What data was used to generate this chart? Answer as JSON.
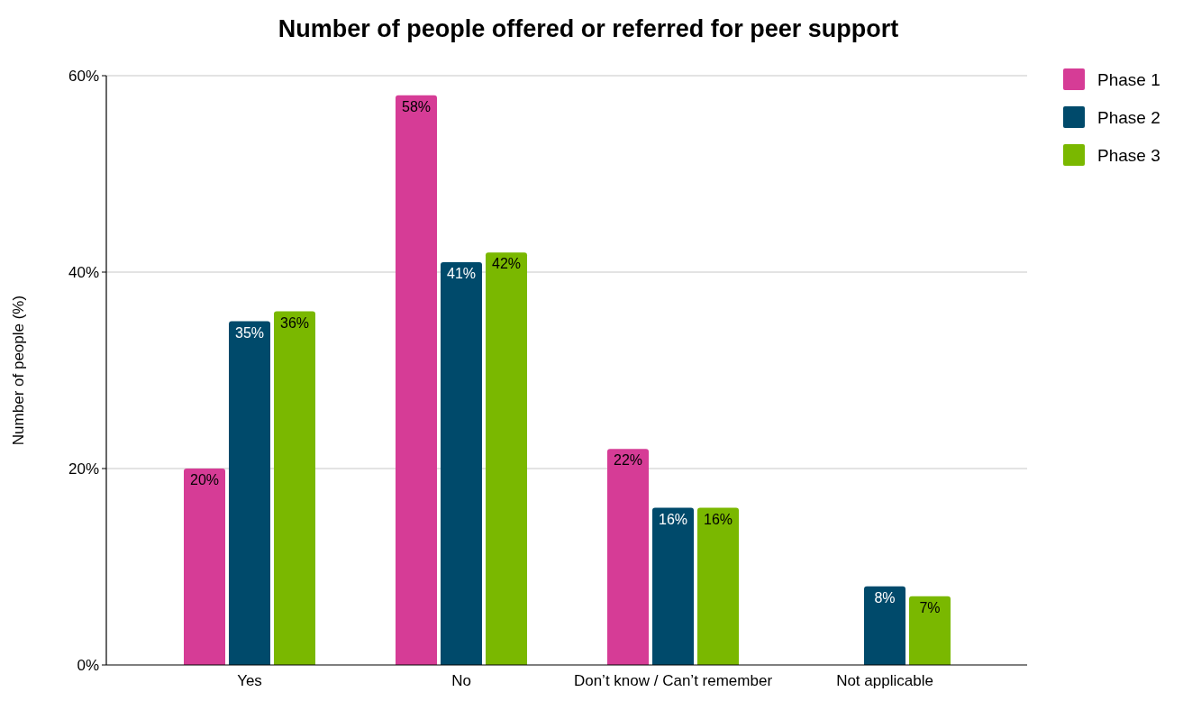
{
  "chart_data": {
    "type": "bar",
    "title": "Number of people offered or referred for peer support",
    "ylabel": "Number of people (%)",
    "categories": [
      "Yes",
      "No",
      "Don’t know / Can’t remember",
      "Not applicable"
    ],
    "series": [
      {
        "name": "Phase 1",
        "color": "#d63c96",
        "values": [
          20,
          58,
          22,
          null
        ],
        "value_labels": [
          "20%",
          "58%",
          "22%",
          null
        ]
      },
      {
        "name": "Phase 2",
        "color": "#004a6b",
        "values": [
          35,
          41,
          16,
          8
        ],
        "value_labels": [
          "35%",
          "41%",
          "16%",
          "8%"
        ]
      },
      {
        "name": "Phase 3",
        "color": "#7ab800",
        "values": [
          36,
          42,
          16,
          7
        ],
        "value_labels": [
          "36%",
          "42%",
          "16%",
          "7%"
        ]
      }
    ],
    "ylim": [
      0,
      60
    ],
    "yticks": [
      {
        "value": 0,
        "label": "0%"
      },
      {
        "value": 20,
        "label": "20%"
      },
      {
        "value": 40,
        "label": "40%"
      },
      {
        "value": 60,
        "label": "60%"
      }
    ],
    "grid": "y",
    "legend": "top right"
  }
}
